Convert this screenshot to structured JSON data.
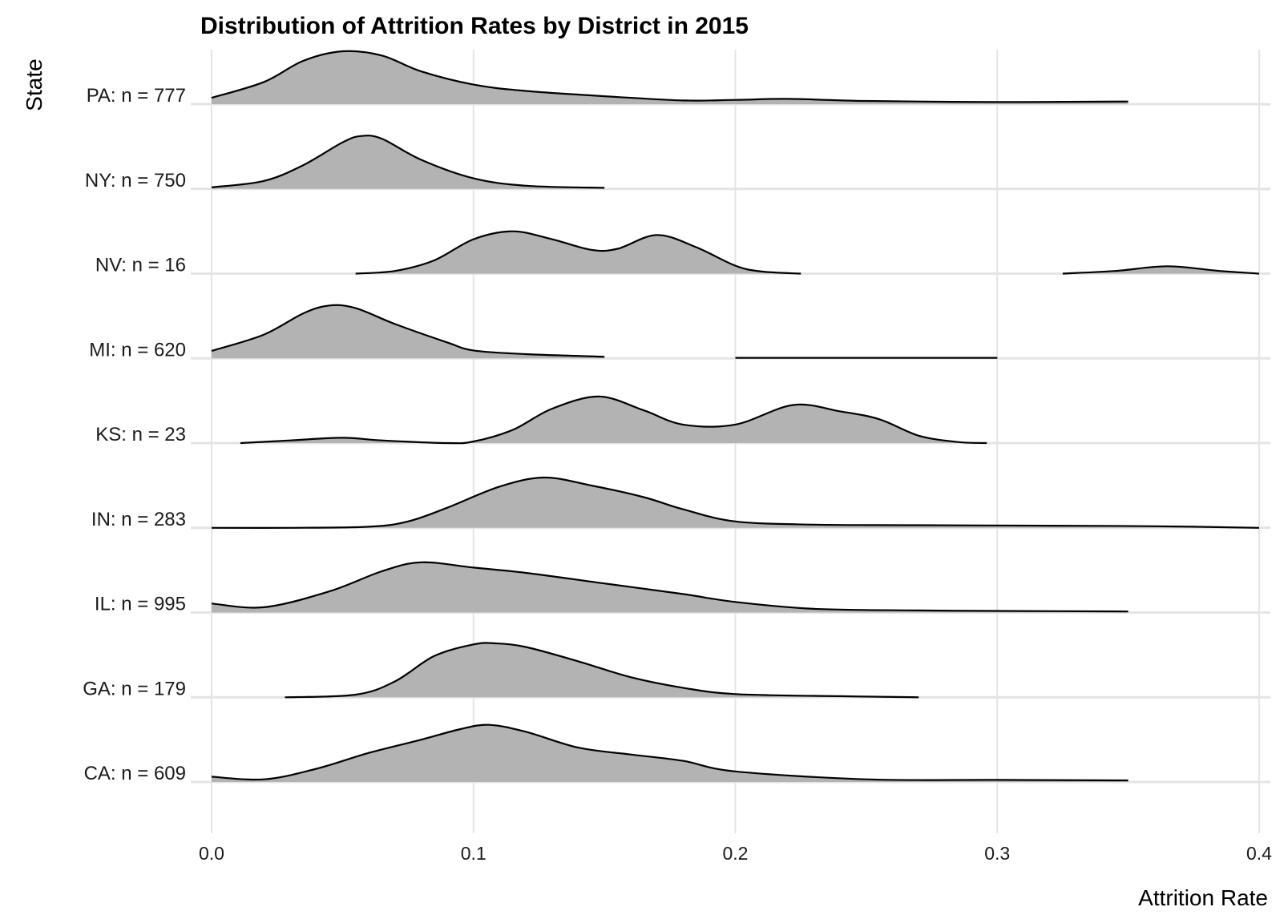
{
  "chart_data": {
    "type": "ridgeline",
    "title": "Distribution of Attrition Rates by District in 2015",
    "xlabel": "Attrition Rate",
    "ylabel": "State",
    "xlim": [
      0.0,
      0.4
    ],
    "xticks": [
      "0.0",
      "0.1",
      "0.2",
      "0.3",
      "0.4"
    ],
    "grid": true,
    "fill_color": "#b3b3b3",
    "line_color": "#000000",
    "series": [
      {
        "name": "PA: n = 777",
        "x": [
          0.0,
          0.02,
          0.035,
          0.05,
          0.065,
          0.08,
          0.1,
          0.12,
          0.15,
          0.18,
          0.2,
          0.22,
          0.25,
          0.3,
          0.35,
          0.4
        ],
        "density": [
          0.12,
          0.42,
          0.82,
          1.0,
          0.92,
          0.62,
          0.37,
          0.25,
          0.15,
          0.07,
          0.08,
          0.1,
          0.06,
          0.04,
          0.05,
          0.0
        ]
      },
      {
        "name": "NY: n = 750",
        "x": [
          0.0,
          0.02,
          0.035,
          0.05,
          0.057,
          0.065,
          0.08,
          0.1,
          0.12,
          0.15,
          0.2,
          0.27
        ],
        "density": [
          0.03,
          0.15,
          0.45,
          0.88,
          1.0,
          0.95,
          0.55,
          0.2,
          0.06,
          0.02,
          0.01,
          0.0
        ]
      },
      {
        "name": "NV: n = 16",
        "x": [
          0.055,
          0.07,
          0.085,
          0.1,
          0.115,
          0.13,
          0.145,
          0.155,
          0.17,
          0.185,
          0.2,
          0.21,
          0.225,
          0.325,
          0.345,
          0.365,
          0.385,
          0.4
        ],
        "density": [
          0.0,
          0.05,
          0.25,
          0.65,
          0.8,
          0.65,
          0.45,
          0.47,
          0.73,
          0.5,
          0.15,
          0.04,
          0.0,
          0.0,
          0.05,
          0.14,
          0.05,
          0.0
        ]
      },
      {
        "name": "MI: n = 620",
        "x": [
          0.0,
          0.02,
          0.035,
          0.045,
          0.055,
          0.07,
          0.09,
          0.1,
          0.12,
          0.15,
          0.2,
          0.25,
          0.3,
          0.352
        ],
        "density": [
          0.14,
          0.45,
          0.85,
          1.0,
          0.95,
          0.65,
          0.3,
          0.15,
          0.08,
          0.03,
          0.01,
          0.01,
          0.01,
          0.0
        ]
      },
      {
        "name": "KS: n = 23",
        "x": [
          0.011,
          0.03,
          0.05,
          0.065,
          0.09,
          0.1,
          0.115,
          0.13,
          0.148,
          0.165,
          0.18,
          0.2,
          0.222,
          0.24,
          0.255,
          0.27,
          0.285,
          0.296
        ],
        "density": [
          0.0,
          0.05,
          0.1,
          0.05,
          0.0,
          0.03,
          0.25,
          0.65,
          0.88,
          0.62,
          0.35,
          0.35,
          0.72,
          0.6,
          0.45,
          0.14,
          0.02,
          0.0
        ]
      },
      {
        "name": "IN: n = 283",
        "x": [
          0.0,
          0.03,
          0.06,
          0.075,
          0.09,
          0.11,
          0.127,
          0.145,
          0.165,
          0.18,
          0.2,
          0.23,
          0.27,
          0.32,
          0.36,
          0.4
        ],
        "density": [
          0.0,
          0.0,
          0.02,
          0.12,
          0.38,
          0.78,
          0.95,
          0.8,
          0.58,
          0.35,
          0.12,
          0.06,
          0.05,
          0.04,
          0.03,
          0.0
        ]
      },
      {
        "name": "IL: n = 995",
        "x": [
          0.0,
          0.02,
          0.045,
          0.065,
          0.08,
          0.1,
          0.12,
          0.15,
          0.18,
          0.2,
          0.23,
          0.27,
          0.3,
          0.35,
          0.4
        ],
        "density": [
          0.17,
          0.1,
          0.4,
          0.78,
          0.95,
          0.85,
          0.75,
          0.55,
          0.35,
          0.2,
          0.07,
          0.04,
          0.03,
          0.02,
          0.0
        ]
      },
      {
        "name": "GA: n = 179",
        "x": [
          0.028,
          0.055,
          0.07,
          0.085,
          0.1,
          0.108,
          0.12,
          0.14,
          0.16,
          0.18,
          0.2,
          0.24,
          0.27
        ],
        "density": [
          0.0,
          0.05,
          0.3,
          0.78,
          1.0,
          1.02,
          0.95,
          0.68,
          0.38,
          0.18,
          0.06,
          0.02,
          0.0
        ]
      },
      {
        "name": "CA: n = 609",
        "x": [
          0.0,
          0.02,
          0.04,
          0.06,
          0.08,
          0.095,
          0.106,
          0.12,
          0.14,
          0.16,
          0.18,
          0.2,
          0.25,
          0.3,
          0.35,
          0.4
        ],
        "density": [
          0.1,
          0.05,
          0.25,
          0.55,
          0.8,
          1.0,
          1.08,
          0.95,
          0.65,
          0.52,
          0.4,
          0.2,
          0.05,
          0.04,
          0.03,
          0.0
        ]
      }
    ]
  }
}
